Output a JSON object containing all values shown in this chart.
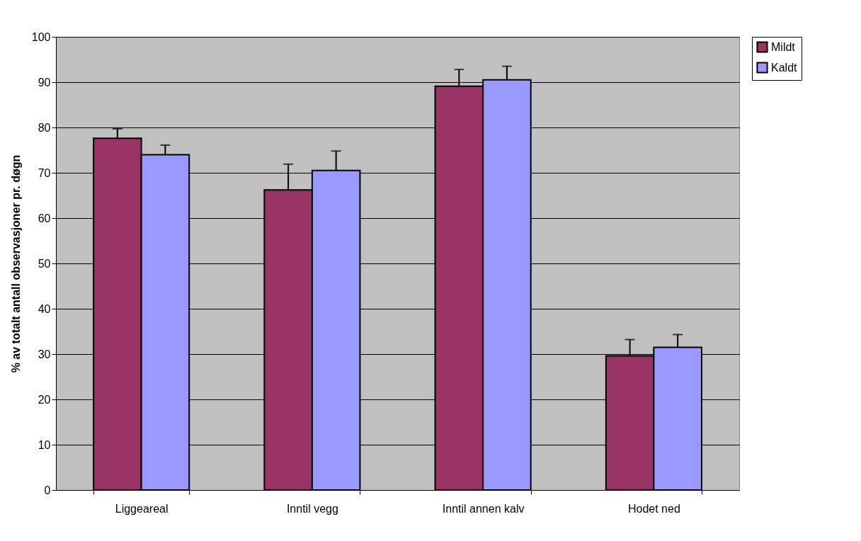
{
  "chart_data": {
    "type": "bar",
    "ylabel": "% av totalt antall observasjoner pr. døgn",
    "categories": [
      "Liggeareal",
      "Inntil vegg",
      "Inntil annen kalv",
      "Hodet ned"
    ],
    "series": [
      {
        "name": "Mildt",
        "color": "#993366",
        "values": [
          77.6,
          66.2,
          89.1,
          29.6
        ],
        "errors": [
          [
            77.6,
            79.7
          ],
          [
            66.2,
            71.9
          ],
          [
            89.1,
            92.8
          ],
          [
            29.6,
            33.2
          ]
        ]
      },
      {
        "name": "Kaldt",
        "color": "#9999ff",
        "values": [
          74.0,
          70.5,
          90.5,
          31.5
        ],
        "errors": [
          [
            74.0,
            76.1
          ],
          [
            70.5,
            74.8
          ],
          [
            90.5,
            93.5
          ],
          [
            31.5,
            34.3
          ]
        ]
      }
    ],
    "ylim": [
      0,
      100
    ],
    "yticks": [
      0,
      10,
      20,
      30,
      40,
      50,
      60,
      70,
      80,
      90,
      100
    ],
    "grid": "y",
    "legend": "right"
  }
}
